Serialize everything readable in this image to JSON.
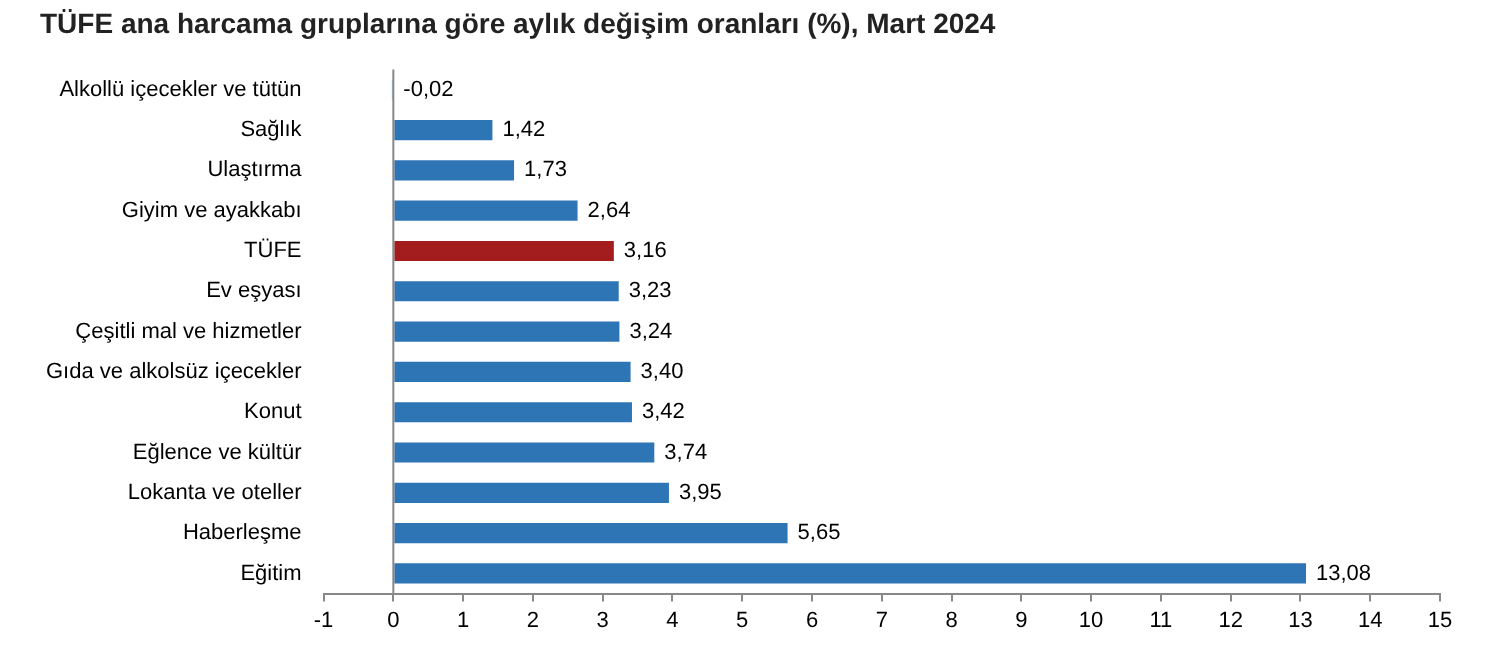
{
  "chart_data": {
    "type": "bar",
    "orientation": "horizontal",
    "title": "TÜFE ana harcama gruplarına göre aylık değişim oranları (%), Mart 2024",
    "categories": [
      "Alkollü içecekler ve tütün",
      "Sağlık",
      "Ulaştırma",
      "Giyim ve ayakkabı",
      "TÜFE",
      "Ev eşyası",
      "Çeşitli mal ve hizmetler",
      "Gıda ve alkolsüz içecekler",
      "Konut",
      "Eğlence ve kültür",
      "Lokanta ve oteller",
      "Haberleşme",
      "Eğitim"
    ],
    "values": [
      -0.02,
      1.42,
      1.73,
      2.64,
      3.16,
      3.23,
      3.24,
      3.4,
      3.42,
      3.74,
      3.95,
      5.65,
      13.08
    ],
    "value_labels": [
      "-0,02",
      "1,42",
      "1,73",
      "2,64",
      "3,16",
      "3,23",
      "3,24",
      "3,40",
      "3,42",
      "3,74",
      "3,95",
      "5,65",
      "13,08"
    ],
    "colors": [
      "#2e75b6",
      "#2e75b6",
      "#2e75b6",
      "#2e75b6",
      "#a31c1e",
      "#2e75b6",
      "#2e75b6",
      "#2e75b6",
      "#2e75b6",
      "#2e75b6",
      "#2e75b6",
      "#2e75b6",
      "#2e75b6"
    ],
    "xlim": [
      -1,
      15
    ],
    "xticks": [
      -1,
      0,
      1,
      2,
      3,
      4,
      5,
      6,
      7,
      8,
      9,
      10,
      11,
      12,
      13,
      14,
      15
    ],
    "legend": false
  }
}
